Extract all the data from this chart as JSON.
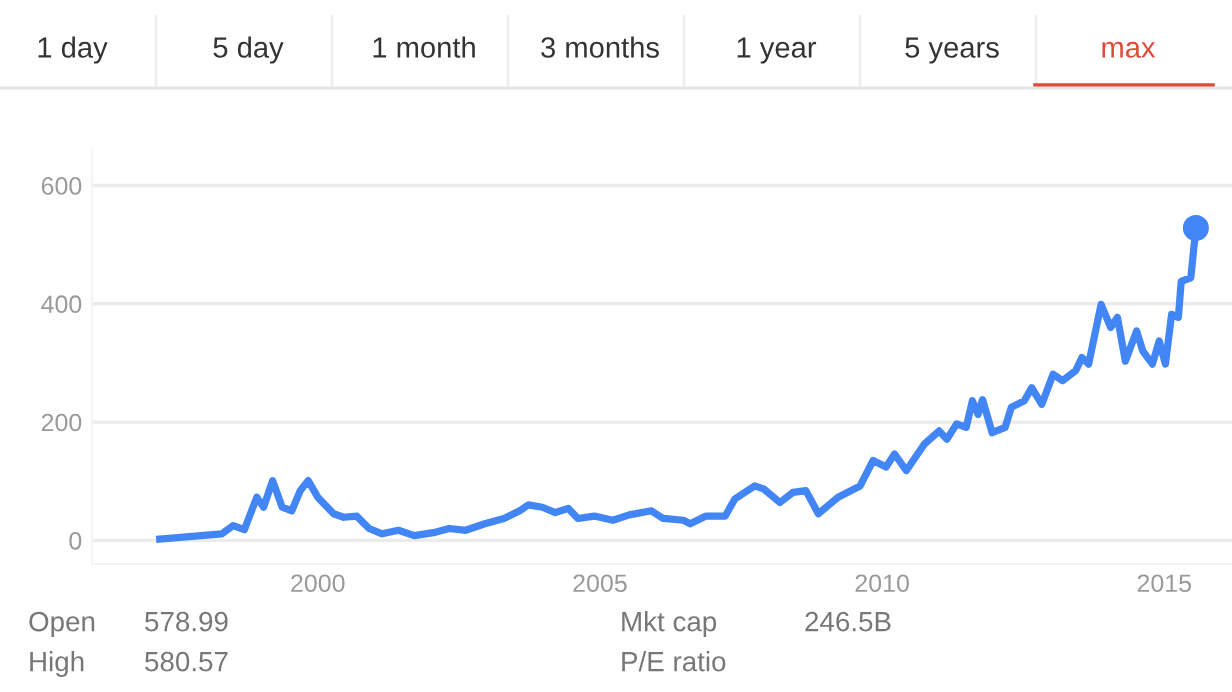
{
  "chart_data": {
    "type": "line",
    "annotations": [
      "1 day",
      "5 day",
      "1 month",
      "3 months",
      "1 year",
      "5 years",
      "max",
      "Open",
      "578.99",
      "High",
      "580.57",
      "Mkt cap",
      "246.5B",
      "P/E ratio"
    ],
    "xlim": [
      1996,
      2016.2
    ],
    "xticks": [
      2000,
      2005,
      2010,
      2015
    ],
    "ylim": [
      -40,
      660
    ],
    "yticks": [
      0,
      200,
      400,
      600
    ],
    "grid": "y",
    "legend": false,
    "series": [
      {
        "color": "#4285f4",
        "marker": "none",
        "x": [
          1997.2,
          1998.3,
          1998.5,
          1998.7,
          1998.92,
          1999.04,
          1999.2,
          1999.37,
          1999.54,
          1999.69,
          1999.83,
          2000.0,
          2000.28,
          2000.46,
          2000.69,
          2000.91,
          2001.14,
          2001.43,
          2001.71,
          2002.05,
          2002.33,
          2002.62,
          2002.96,
          2003.3,
          2003.58,
          2003.73,
          2003.98,
          2004.21,
          2004.44,
          2004.61,
          2004.9,
          2005.23,
          2005.52,
          2005.91,
          2006.12,
          2006.48,
          2006.6,
          2006.88,
          2007.22,
          2007.39,
          2007.74,
          2007.9,
          2008.19,
          2008.42,
          2008.65,
          2008.87,
          2009.22,
          2009.61,
          2009.84,
          2010.07,
          2010.22,
          2010.43,
          2010.75,
          2011.01,
          2011.15,
          2011.32,
          2011.49,
          2011.6,
          2011.7,
          2011.78,
          2011.95,
          2012.18,
          2012.29,
          2012.52,
          2012.65,
          2012.83,
          2013.03,
          2013.2,
          2013.43,
          2013.54,
          2013.66,
          2013.88,
          2014.05,
          2014.17,
          2014.31,
          2014.51,
          2014.62,
          2014.79,
          2014.91,
          2015.02,
          2015.13,
          2015.25,
          2015.3,
          2015.47,
          2015.56
        ],
        "values": [
          2,
          11,
          25,
          18,
          73,
          56,
          101,
          56,
          50,
          84,
          101,
          73,
          45,
          39,
          41,
          20,
          11,
          17,
          8,
          13,
          20,
          17,
          28,
          37,
          50,
          60,
          56,
          47,
          54,
          37,
          41,
          34,
          43,
          50,
          37,
          34,
          28,
          41,
          41,
          70,
          92,
          87,
          64,
          81,
          84,
          45,
          73,
          92,
          135,
          124,
          146,
          118,
          163,
          185,
          171,
          197,
          191,
          236,
          213,
          238,
          182,
          191,
          225,
          236,
          258,
          230,
          281,
          270,
          287,
          309,
          298,
          399,
          360,
          377,
          303,
          354,
          320,
          298,
          337,
          298,
          382,
          377,
          438,
          444,
          528
        ]
      },
      {
        "type": "scatter",
        "color": "#4285f4",
        "marker": "circle",
        "x": [
          2015.56
        ],
        "values": [
          528
        ]
      }
    ]
  }
}
